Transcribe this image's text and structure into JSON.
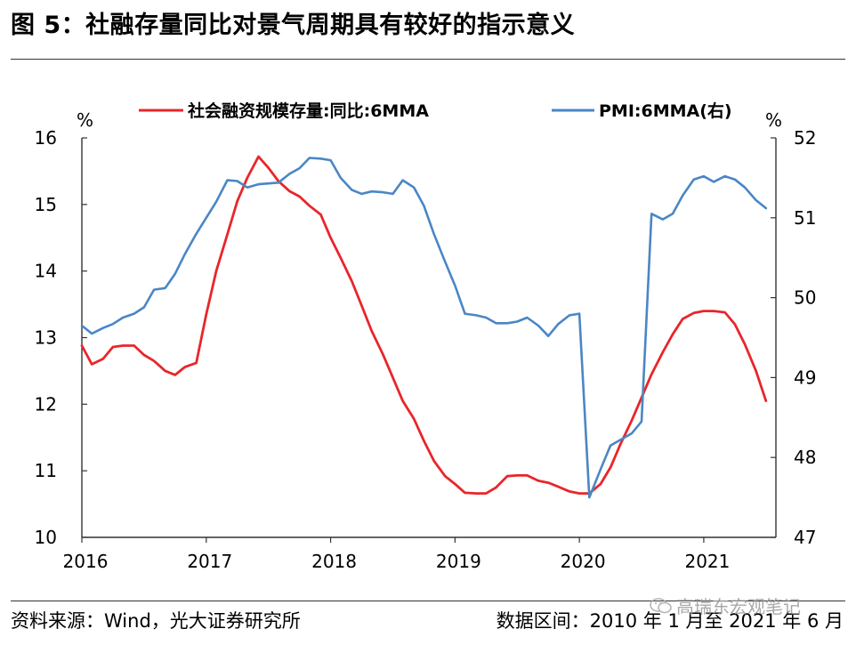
{
  "title": "图 5：社融存量同比对景气周期具有较好的指示意义",
  "source": "资料来源：Wind，光大证券研究所",
  "date_range": "数据区间：2010 年 1 月至 2021 年 6 月",
  "watermark": "高瑞东宏观笔记",
  "colors": {
    "red": "#e8262a",
    "blue": "#4a86c5",
    "axis": "#333333"
  },
  "chart_data": {
    "type": "line",
    "left_unit": "%",
    "right_unit": "%",
    "x_ticks": [
      "2016",
      "2017",
      "2018",
      "2019",
      "2020",
      "2021"
    ],
    "x_range": [
      2016.0,
      2021.58
    ],
    "y_left": {
      "ticks": [
        "10",
        "11",
        "12",
        "13",
        "14",
        "15",
        "16"
      ],
      "range": [
        10,
        16
      ]
    },
    "y_right": {
      "ticks": [
        "47",
        "48",
        "49",
        "50",
        "51",
        "52"
      ],
      "range": [
        47,
        52
      ]
    },
    "legend_position": "top",
    "series": [
      {
        "name": "社会融资规模存量:同比:6MMA",
        "axis": "left",
        "color": "#e8262a",
        "x": [
          2016.0,
          2016.08,
          2016.17,
          2016.25,
          2016.33,
          2016.42,
          2016.5,
          2016.58,
          2016.67,
          2016.75,
          2016.83,
          2016.92,
          2017.0,
          2017.08,
          2017.17,
          2017.25,
          2017.33,
          2017.42,
          2017.5,
          2017.58,
          2017.67,
          2017.75,
          2017.83,
          2017.92,
          2018.0,
          2018.08,
          2018.17,
          2018.25,
          2018.33,
          2018.42,
          2018.5,
          2018.58,
          2018.67,
          2018.75,
          2018.83,
          2018.92,
          2019.0,
          2019.08,
          2019.17,
          2019.25,
          2019.33,
          2019.42,
          2019.5,
          2019.58,
          2019.67,
          2019.75,
          2019.83,
          2019.92,
          2020.0,
          2020.08,
          2020.17,
          2020.25,
          2020.33,
          2020.42,
          2020.5,
          2020.58,
          2020.67,
          2020.75,
          2020.83,
          2020.92,
          2021.0,
          2021.08,
          2021.17,
          2021.25,
          2021.33,
          2021.42,
          2021.5
        ],
        "y": [
          12.88,
          12.6,
          12.68,
          12.86,
          12.88,
          12.88,
          12.74,
          12.65,
          12.5,
          12.44,
          12.56,
          12.62,
          13.35,
          14.0,
          14.55,
          15.05,
          15.4,
          15.72,
          15.55,
          15.35,
          15.2,
          15.12,
          14.98,
          14.85,
          14.5,
          14.2,
          13.85,
          13.48,
          13.1,
          12.75,
          12.4,
          12.05,
          11.78,
          11.45,
          11.15,
          10.92,
          10.8,
          10.67,
          10.66,
          10.66,
          10.75,
          10.92,
          10.93,
          10.93,
          10.85,
          10.82,
          10.76,
          10.69,
          10.66,
          10.66,
          10.8,
          11.05,
          11.4,
          11.75,
          12.1,
          12.45,
          12.78,
          13.05,
          13.28,
          13.37,
          13.4,
          13.4,
          13.38,
          13.2,
          12.9,
          12.5,
          12.05
        ]
      },
      {
        "name": "PMI:6MMA(右)",
        "axis": "right",
        "color": "#4a86c5",
        "x": [
          2016.0,
          2016.08,
          2016.17,
          2016.25,
          2016.33,
          2016.42,
          2016.5,
          2016.58,
          2016.67,
          2016.75,
          2016.83,
          2016.92,
          2017.0,
          2017.08,
          2017.17,
          2017.25,
          2017.33,
          2017.42,
          2017.5,
          2017.58,
          2017.67,
          2017.75,
          2017.83,
          2017.92,
          2018.0,
          2018.08,
          2018.17,
          2018.25,
          2018.33,
          2018.42,
          2018.5,
          2018.58,
          2018.67,
          2018.75,
          2018.83,
          2018.92,
          2019.0,
          2019.08,
          2019.17,
          2019.25,
          2019.33,
          2019.42,
          2019.5,
          2019.58,
          2019.67,
          2019.75,
          2019.83,
          2019.92,
          2020.0,
          2020.08,
          2020.17,
          2020.25,
          2020.33,
          2020.42,
          2020.5,
          2020.58,
          2020.67,
          2020.75,
          2020.83,
          2020.92,
          2021.0,
          2021.08,
          2021.17,
          2021.25,
          2021.33,
          2021.42,
          2021.5
        ],
        "y": [
          49.65,
          49.55,
          49.62,
          49.67,
          49.75,
          49.8,
          49.88,
          50.1,
          50.12,
          50.3,
          50.55,
          50.8,
          51.0,
          51.2,
          51.47,
          51.46,
          51.38,
          51.42,
          51.43,
          51.44,
          51.55,
          51.62,
          51.75,
          51.74,
          51.72,
          51.5,
          51.35,
          51.3,
          51.33,
          51.32,
          51.3,
          51.47,
          51.38,
          51.15,
          50.8,
          50.45,
          50.15,
          49.8,
          49.78,
          49.75,
          49.68,
          49.68,
          49.7,
          49.75,
          49.65,
          49.52,
          49.67,
          49.78,
          49.8,
          47.5,
          47.85,
          48.15,
          48.22,
          48.3,
          48.45,
          51.05,
          50.98,
          51.05,
          51.28,
          51.48,
          51.52,
          51.45,
          51.52,
          51.48,
          51.38,
          51.22,
          51.12
        ]
      }
    ]
  }
}
